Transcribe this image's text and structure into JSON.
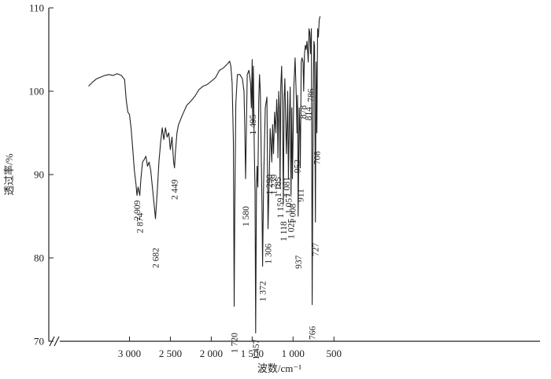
{
  "chart_data": {
    "type": "line",
    "title": "",
    "xlabel": "波数/cm⁻¹",
    "ylabel": "透过率/%",
    "xlim": [
      3500,
      500
    ],
    "ylim": [
      70,
      110
    ],
    "x_ticks": [
      3000,
      2500,
      2000,
      1500,
      1000,
      500
    ],
    "x_tick_labels": [
      "3 000",
      "2 500",
      "2 000",
      "1 500",
      "1 000",
      "500"
    ],
    "y_ticks": [
      70,
      80,
      90,
      100,
      110
    ],
    "y_tick_labels": [
      "70",
      "80",
      "90",
      "100",
      "110"
    ],
    "axis_break": "x-axis near left end",
    "grid": false,
    "series": [
      {
        "x": [
          3500,
          3450,
          3400,
          3350,
          3300,
          3250,
          3200,
          3150,
          3100,
          3060,
          3040,
          3020,
          3000,
          2980,
          2960,
          2940,
          2920,
          2909,
          2895,
          2874,
          2860,
          2840,
          2820,
          2800,
          2780,
          2760,
          2740,
          2720,
          2700,
          2682,
          2660,
          2640,
          2620,
          2600,
          2580,
          2560,
          2540,
          2520,
          2500,
          2480,
          2460,
          2449,
          2440,
          2420,
          2400,
          2350,
          2300,
          2250,
          2200,
          2150,
          2100,
          2050,
          2000,
          1950,
          1900,
          1850,
          1800,
          1775,
          1760,
          1745,
          1730,
          1720,
          1712,
          1700,
          1680,
          1650,
          1620,
          1600,
          1590,
          1580,
          1570,
          1560,
          1540,
          1520,
          1510,
          1500,
          1495,
          1485,
          1475,
          1465,
          1457,
          1448,
          1440,
          1430,
          1420,
          1410,
          1400,
          1390,
          1380,
          1372,
          1360,
          1340,
          1320,
          1306,
          1295,
          1290,
          1280,
          1270,
          1260,
          1250,
          1239,
          1225,
          1210,
          1200,
          1190,
          1185,
          1175,
          1165,
          1159,
          1150,
          1140,
          1130,
          1118,
          1110,
          1100,
          1090,
          1081,
          1070,
          1065,
          1057,
          1045,
          1035,
          1025,
          1015,
          1008,
          1000,
          990,
          975,
          960,
          952,
          945,
          937,
          925,
          915,
          911,
          900,
          890,
          878,
          870,
          860,
          850,
          840,
          830,
          820,
          814,
          805,
          795,
          786,
          776,
          766,
          755,
          745,
          737,
          727,
          718,
          708,
          700,
          690,
          680,
          670
        ],
        "y": [
          100.6,
          101.1,
          101.5,
          101.7,
          101.9,
          102.0,
          101.9,
          102.1,
          101.9,
          101.4,
          99.0,
          97.5,
          97.2,
          95.5,
          93.0,
          90.5,
          88.8,
          87.5,
          88.5,
          87.5,
          89.5,
          91.5,
          91.8,
          92.2,
          91.0,
          91.5,
          90.5,
          88.5,
          86.5,
          84.7,
          88.0,
          91.5,
          93.8,
          95.6,
          94.2,
          95.6,
          94.5,
          95.0,
          93.0,
          94.5,
          91.5,
          90.8,
          92.5,
          95.0,
          96.0,
          97.2,
          98.3,
          98.8,
          99.4,
          100.2,
          100.6,
          100.8,
          101.2,
          101.6,
          102.5,
          102.8,
          103.3,
          103.6,
          103.0,
          101.0,
          94.0,
          74.2,
          86.0,
          98.5,
          102.0,
          102.0,
          101.5,
          100.0,
          95.5,
          89.5,
          96.0,
          102.0,
          102.5,
          101.0,
          98.0,
          103.8,
          96.0,
          103.0,
          94.0,
          88.0,
          71.0,
          88.0,
          91.0,
          88.5,
          98.8,
          102.0,
          100.0,
          93.0,
          86.5,
          79.0,
          89.0,
          98.0,
          99.3,
          83.5,
          88.0,
          90.0,
          95.5,
          94.0,
          91.5,
          96.0,
          92.5,
          97.5,
          95.0,
          99.0,
          96.5,
          92.0,
          100.0,
          97.5,
          88.5,
          100.5,
          103.0,
          98.5,
          86.5,
          99.0,
          101.5,
          96.5,
          92.5,
          97.0,
          100.0,
          89.5,
          96.5,
          100.5,
          87.5,
          98.0,
          89.5,
          94.0,
          100.5,
          104.0,
          99.0,
          95.0,
          99.5,
          85.0,
          98.0,
          95.0,
          90.8,
          103.5,
          104.0,
          103.5,
          100.0,
          104.5,
          105.5,
          105.0,
          106.0,
          104.5,
          103.5,
          107.5,
          107.0,
          104.5,
          107.5,
          74.4,
          98.0,
          106.0,
          105.5,
          84.3,
          103.5,
          95.0,
          107.5,
          106.5,
          108.5,
          109.0
        ]
      }
    ],
    "peak_labels": [
      "2 909",
      "2 874",
      "2 682",
      "2 449",
      "1 720",
      "1 580",
      "1 495",
      "1 457",
      "1 372",
      "1 306",
      "1 290",
      "1 239",
      "1 185",
      "1 159",
      "1 118",
      "1 081",
      "1 057",
      "1 025",
      "1 008",
      "952",
      "937",
      "911",
      "878",
      "814",
      "786",
      "766",
      "727",
      "708"
    ],
    "peak_label_x": [
      2909,
      2874,
      2682,
      2449,
      1720,
      1580,
      1495,
      1457,
      1372,
      1306,
      1290,
      1239,
      1185,
      1159,
      1118,
      1081,
      1057,
      1025,
      1008,
      952,
      937,
      911,
      878,
      814,
      786,
      766,
      727,
      708
    ],
    "peak_label_y": [
      85.7,
      84.2,
      80.0,
      88.2,
      69.8,
      85.0,
      96.0,
      69.0,
      76.0,
      80.5,
      88.8,
      88.8,
      88.5,
      86.0,
      83.2,
      88.5,
      86.5,
      83.5,
      85.3,
      91.0,
      79.5,
      87.5,
      97.5,
      97.3,
      99.5,
      71.0,
      81.0,
      92.0
    ]
  }
}
